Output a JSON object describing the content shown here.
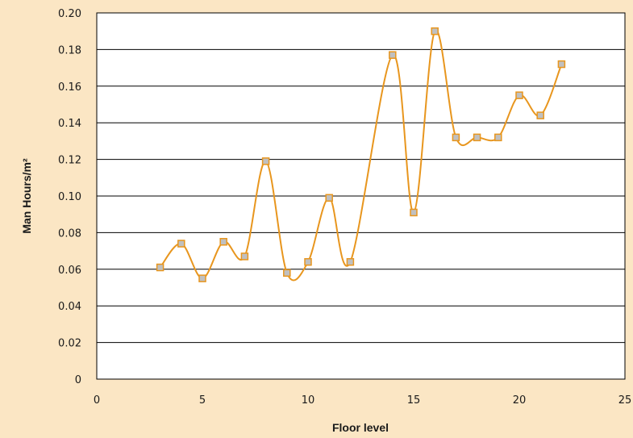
{
  "chart_data": {
    "type": "line",
    "title": "",
    "xlabel": "Floor level",
    "ylabel": "Man Hours/m²",
    "xlim": [
      0,
      25
    ],
    "ylim": [
      0,
      0.2
    ],
    "x_ticks": [
      0,
      5,
      10,
      15,
      20,
      25
    ],
    "y_ticks": [
      0,
      0.02,
      0.04,
      0.06,
      0.08,
      0.1,
      0.12,
      0.14,
      0.16,
      0.18,
      0.2
    ],
    "x_tick_labels": [
      "0",
      "5",
      "10",
      "15",
      "20",
      "25"
    ],
    "y_tick_labels": [
      "0",
      "0.02",
      "0.04",
      "0.06",
      "0.08",
      "0.10",
      "0.12",
      "0.14",
      "0.16",
      "0.18",
      "0.20"
    ],
    "grid": "horizontal",
    "smooth": true,
    "series": [
      {
        "name": "",
        "x": [
          3,
          4,
          5,
          6,
          7,
          8,
          9,
          10,
          11,
          12,
          14,
          15,
          16,
          17,
          18,
          19,
          20,
          21,
          22
        ],
        "y": [
          0.061,
          0.074,
          0.055,
          0.075,
          0.067,
          0.119,
          0.058,
          0.064,
          0.099,
          0.064,
          0.177,
          0.091,
          0.19,
          0.132,
          0.132,
          0.132,
          0.155,
          0.144,
          0.172
        ]
      }
    ],
    "colors": {
      "background": "#fbe6c4",
      "plot_background": "#ffffff",
      "line": "#e8961e",
      "marker_fill": "#c0c0c0",
      "marker_edge": "#e8961e",
      "grid": "#000000"
    }
  }
}
